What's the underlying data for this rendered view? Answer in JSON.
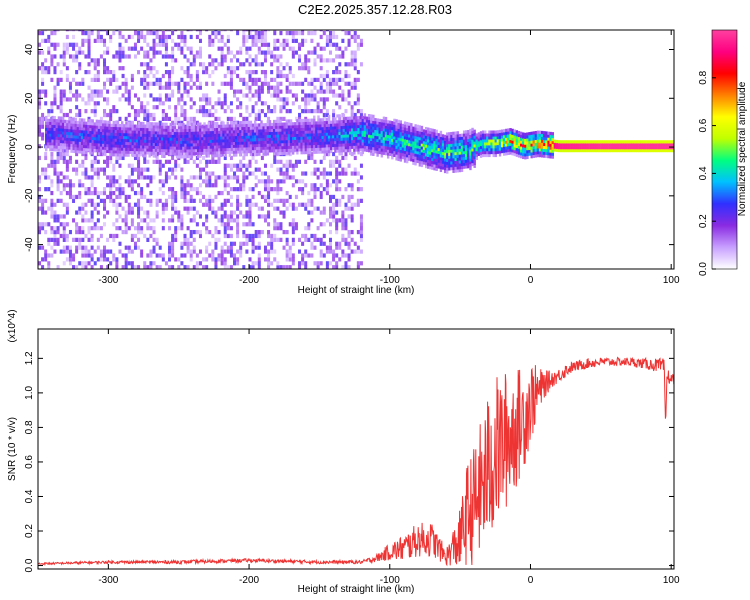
{
  "title": "C2E2.2025.357.12.28.R03",
  "chart_data": [
    {
      "type": "heatmap",
      "title": "C2E2.2025.357.12.28.R03",
      "xlabel": "Height of straight line (km)",
      "ylabel": "Frequency (Hz)",
      "xlim": [
        -350,
        102
      ],
      "ylim": [
        -50,
        48
      ],
      "xticks": [
        "-300",
        "-200",
        "-100",
        "0",
        "100"
      ],
      "yticks": [
        "40",
        "20",
        "0",
        "-20",
        "-40"
      ],
      "colorbar": {
        "label": "Normalized spectral amplitude",
        "range": [
          0,
          1
        ],
        "ticks": [
          "0.0",
          "0.2",
          "0.4",
          "0.6",
          "0.8"
        ],
        "colors": [
          "#ffffff",
          "#c8a0ff",
          "#8a2be2",
          "#3030ff",
          "#00c0ff",
          "#00ff80",
          "#c0ff00",
          "#ffff00",
          "#ff8000",
          "#ff0000",
          "#ff0080",
          "#ff40a0"
        ]
      },
      "ridge": {
        "x": [
          -340,
          -300,
          -250,
          -200,
          -150,
          -120,
          -100,
          -80,
          -60,
          -45,
          -35,
          -25,
          -15,
          -5,
          5,
          20,
          50,
          100
        ],
        "center_freq": [
          5,
          3,
          2,
          3,
          4,
          5,
          3,
          0,
          -3,
          -2,
          1,
          1,
          2,
          0,
          1,
          0,
          0,
          0
        ],
        "peak_amplitude": [
          0.3,
          0.32,
          0.3,
          0.3,
          0.33,
          0.45,
          0.45,
          0.5,
          0.55,
          0.5,
          0.55,
          0.65,
          0.75,
          0.8,
          0.85,
          0.95,
          0.98,
          0.98
        ]
      },
      "noise_extent_x": [
        -350,
        -120
      ]
    },
    {
      "type": "line",
      "xlabel": "Height of straight line (km)",
      "ylabel": "SNR (10 * v/v)",
      "y_multiplier": "(x10^4)",
      "xlim": [
        -350,
        102
      ],
      "ylim": [
        -0.02,
        1.37
      ],
      "xticks": [
        "-300",
        "-200",
        "-100",
        "0",
        "100"
      ],
      "yticks": [
        "0.0",
        "0.2",
        "0.4",
        "0.6",
        "0.8",
        "1.0",
        "1.2"
      ],
      "color": "#ee3333",
      "series": [
        {
          "x": [
            -350,
            -300,
            -250,
            -200,
            -150,
            -120,
            -110,
            -100,
            -90,
            -80,
            -70,
            -60,
            -50,
            -45,
            -40,
            -35,
            -30,
            -25,
            -20,
            -15,
            -10,
            -5,
            0,
            5,
            10,
            15,
            20,
            25,
            30,
            40,
            50,
            60,
            70,
            80,
            90,
            95,
            96,
            97,
            100
          ],
          "values": [
            0.01,
            0.02,
            0.02,
            0.03,
            0.02,
            0.02,
            0.04,
            0.08,
            0.1,
            0.15,
            0.15,
            0.05,
            0.15,
            0.3,
            0.35,
            0.45,
            0.55,
            0.65,
            0.7,
            0.75,
            0.8,
            0.85,
            0.95,
            1.0,
            1.05,
            1.08,
            1.1,
            1.13,
            1.15,
            1.17,
            1.18,
            1.18,
            1.18,
            1.17,
            1.16,
            1.15,
            0.8,
            1.1,
            1.08
          ],
          "amplitude": [
            0.005,
            0.008,
            0.01,
            0.01,
            0.01,
            0.01,
            0.02,
            0.05,
            0.08,
            0.1,
            0.1,
            0.05,
            0.18,
            0.3,
            0.35,
            0.4,
            0.45,
            0.45,
            0.42,
            0.4,
            0.35,
            0.3,
            0.25,
            0.15,
            0.08,
            0.05,
            0.04,
            0.04,
            0.03,
            0.03,
            0.025,
            0.025,
            0.025,
            0.03,
            0.04,
            0.05,
            0.02,
            0.05,
            0.03
          ]
        }
      ]
    }
  ]
}
